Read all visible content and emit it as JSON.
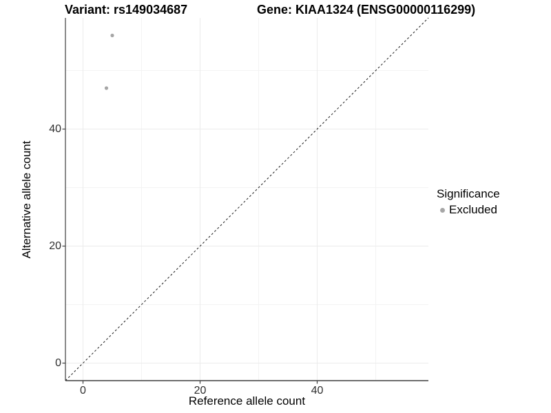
{
  "titles": {
    "left": "Variant: rs149034687",
    "right": "Gene: KIAA1324 (ENSG00000116299)"
  },
  "chart_data": {
    "type": "scatter",
    "title_left": "Variant: rs149034687",
    "title_right": "Gene: KIAA1324 (ENSG00000116299)",
    "xlabel": "Reference allele count",
    "ylabel": "Alternative allele count",
    "xlim": [
      -3,
      59
    ],
    "ylim": [
      -3,
      59
    ],
    "xticks": [
      0,
      20,
      40
    ],
    "yticks": [
      0,
      20,
      40
    ],
    "xtick_labels": [
      "0",
      "20",
      "40"
    ],
    "ytick_labels": [
      "0",
      "20",
      "40"
    ],
    "minor_xticks": [
      10,
      30,
      50
    ],
    "minor_yticks": [
      10,
      30,
      50
    ],
    "grid": true,
    "series": [
      {
        "name": "Excluded",
        "color": "#a6a6a6",
        "points": [
          {
            "x": 5,
            "y": 56
          },
          {
            "x": 4,
            "y": 47
          }
        ]
      }
    ],
    "identity_line": {
      "type": "dashed",
      "slope": 1,
      "intercept": 0,
      "color": "#1a1a1a"
    },
    "legend": {
      "position": "right",
      "title": "Significance",
      "entries": [
        {
          "label": "Excluded",
          "color": "#a6a6a6"
        }
      ]
    },
    "colors": {
      "point": "#a6a6a6",
      "grid_major": "#ebebeb",
      "grid_minor": "#f3f3f3",
      "axis_line": "#3c3c3c",
      "tick_mark": "#3c3c3c",
      "tick_text": "#2e2e2e",
      "background": "#ffffff"
    }
  }
}
